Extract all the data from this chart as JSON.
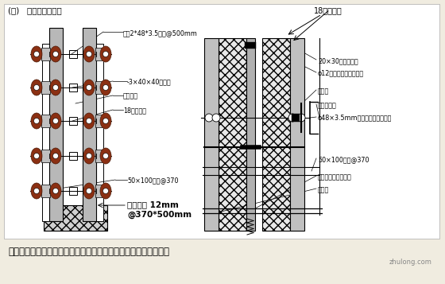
{
  "bg_color": "#f0ece0",
  "title": "(七)   模板支撑大样：",
  "title_right": "18厚胶合板",
  "caption": "防水砂墙水平施工缝、止水钉板及止水螺杆、模板支撑大样（一）",
  "watermark": "zhulong.com",
  "lbl_daleng": "大棲2*48*3.5钉管@500mm",
  "lbl_zhishui_huan": "-3×40×40止水环",
  "lbl_zhishui_luo": "止水螺杆",
  "lbl_mubei": "18厚木垫块",
  "lbl_fang": "50×100松方@370",
  "lbl_duila": "对拉螺栓 12mm",
  "lbl_duila2": "@370*500mm",
  "lbl_r_zhishui_tiao": "20×30膨胀止水条",
  "lbl_r_gangjin": "φ12钉筋焊装固定止水片",
  "lbl_r_xianwei": "限位筋",
  "lbl_r_zhuanyong": "专用钉套件",
  "lbl_r_gangguanjia": "φ48×3.5mm钉管加山型垫件固定",
  "lbl_r_fang": "50×100松方@370",
  "lbl_r_jitai": "基台、底板、楼地板",
  "lbl_r_chajin": "墙插筋"
}
